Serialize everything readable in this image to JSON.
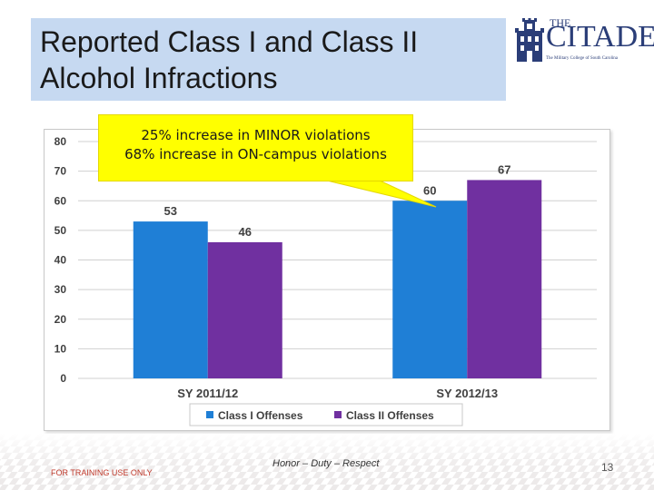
{
  "slide": {
    "title_line1": "Reported Class I and Class II",
    "title_line2": "Alcohol Infractions"
  },
  "logo": {
    "the": "THE",
    "name": "CITADEL",
    "subtitle": "The Military College of South Carolina"
  },
  "callout": {
    "line1": "25% increase in MINOR violations",
    "line2": "68% increase in ON-campus violations"
  },
  "footer": {
    "left": "FOR TRAINING USE ONLY",
    "center": "Honor – Duty – Respect",
    "page": "13"
  },
  "chart_data": {
    "type": "bar",
    "categories": [
      "SY 2011/12",
      "SY 2012/13"
    ],
    "series": [
      {
        "name": "Class I Offenses",
        "values": [
          53,
          60
        ],
        "color": "#1f7fd6"
      },
      {
        "name": "Class II Offenses",
        "values": [
          46,
          67
        ],
        "color": "#7030a0"
      }
    ],
    "ylim": [
      0,
      80
    ],
    "yticks": [
      0,
      10,
      20,
      30,
      40,
      50,
      60,
      70,
      80
    ],
    "grid": true,
    "legend_position": "bottom",
    "data_labels": true
  },
  "colors": {
    "title_bg": "#c6d9f1",
    "callout_bg": "#ffff00",
    "brand": "#2b3e78"
  }
}
